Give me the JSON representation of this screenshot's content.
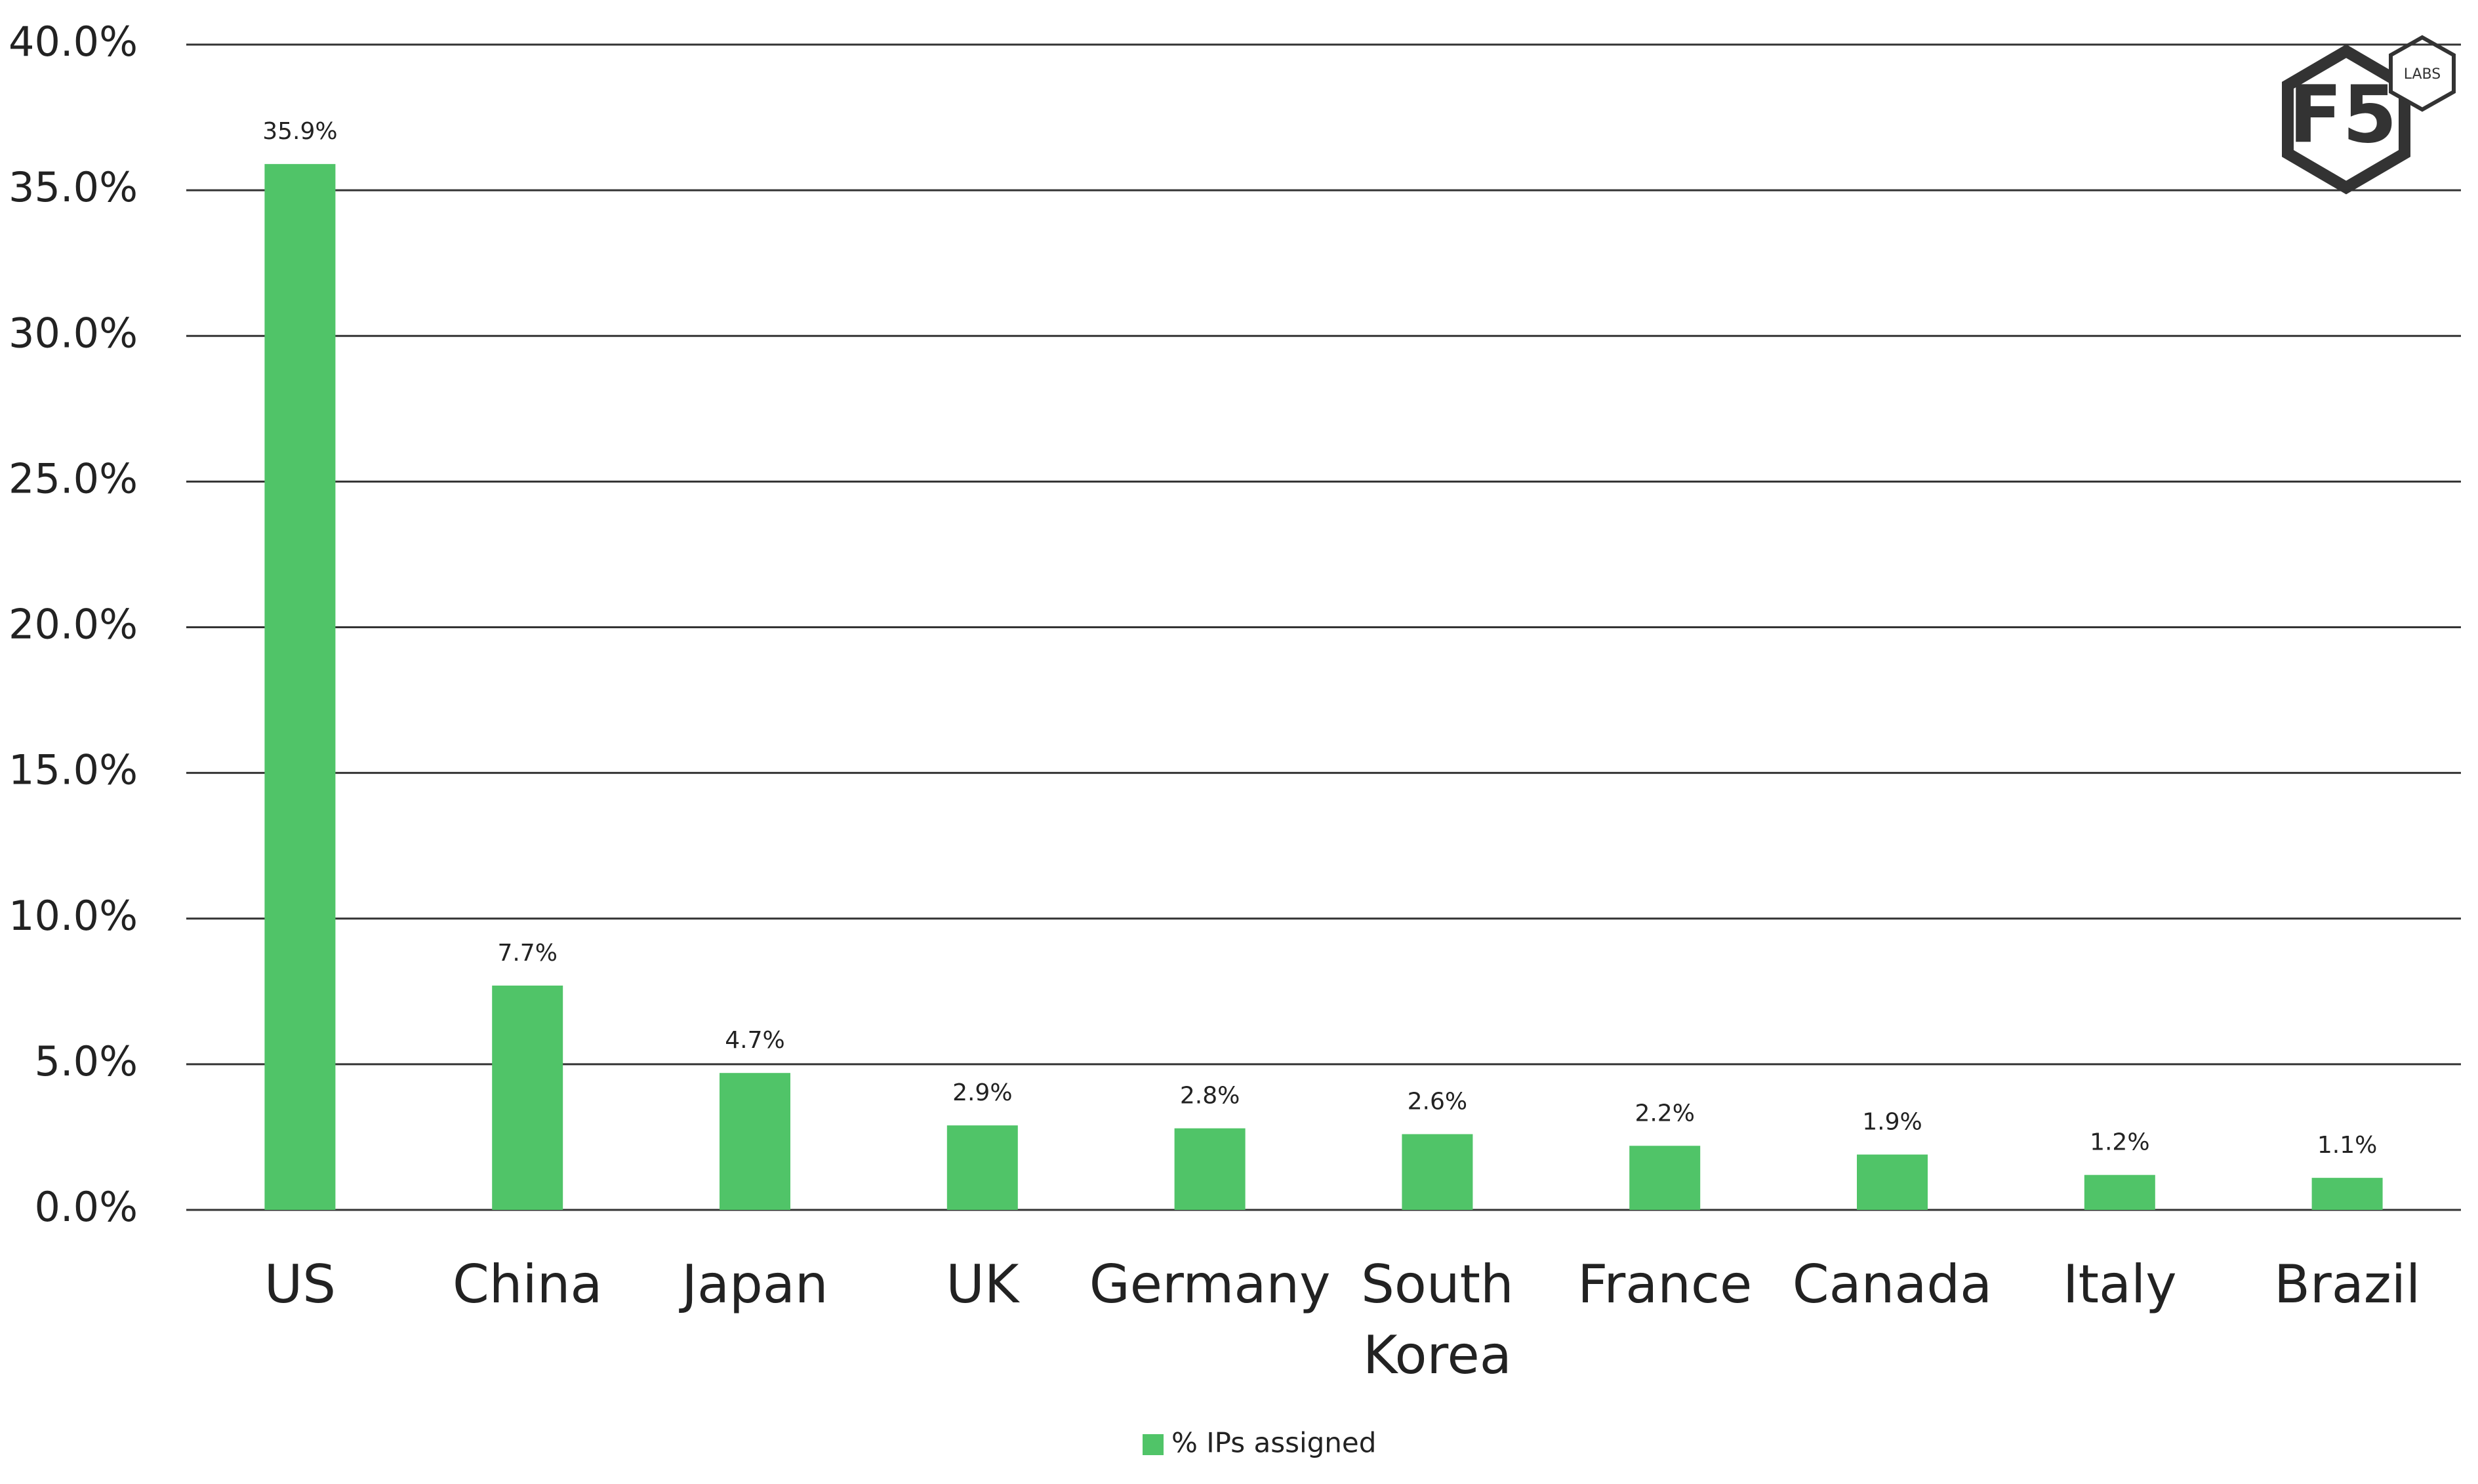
{
  "chart_data": {
    "type": "bar",
    "categories": [
      "US",
      "China",
      "Japan",
      "UK",
      "Germany",
      "South Korea",
      "France",
      "Canada",
      "Italy",
      "Brazil"
    ],
    "series": [
      {
        "name": "% IPs assigned",
        "color": "#50c468",
        "values": [
          35.9,
          7.7,
          4.7,
          2.9,
          2.8,
          2.6,
          2.2,
          1.9,
          1.2,
          1.1
        ],
        "value_labels": [
          "35.9%",
          "7.7%",
          "4.7%",
          "2.9%",
          "2.8%",
          "2.6%",
          "2.2%",
          "1.9%",
          "1.2%",
          "1.1%"
        ]
      }
    ],
    "ylim": [
      0,
      40
    ],
    "yticks": [
      {
        "value": 0,
        "label": "0.0%"
      },
      {
        "value": 5,
        "label": "5.0%"
      },
      {
        "value": 10,
        "label": "10.0%"
      },
      {
        "value": 15,
        "label": "15.0%"
      },
      {
        "value": 20,
        "label": "20.0%"
      },
      {
        "value": 25,
        "label": "25.0%"
      },
      {
        "value": 30,
        "label": "30.0%"
      },
      {
        "value": 35,
        "label": "35.0%"
      },
      {
        "value": 40,
        "label": "40.0%"
      }
    ],
    "grid": true,
    "legend": "bottom",
    "logo": "F5",
    "logo_badge": "LABS"
  }
}
